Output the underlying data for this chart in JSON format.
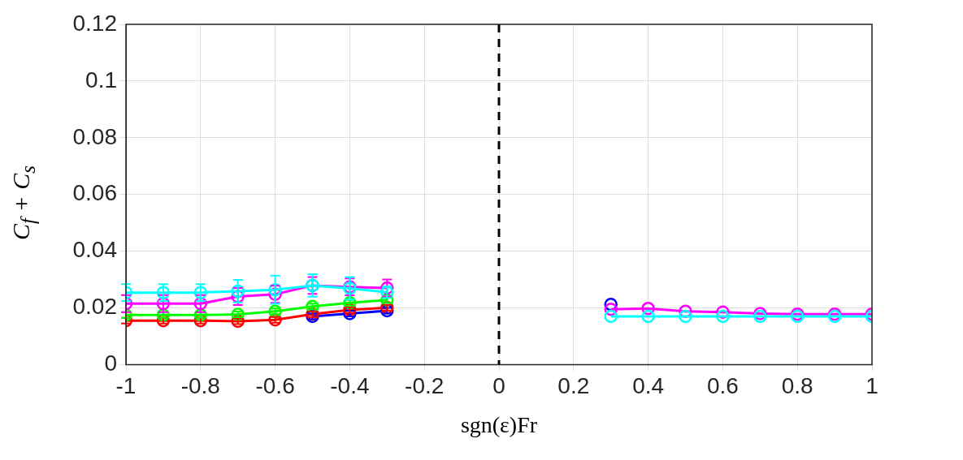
{
  "chart_data": {
    "type": "line",
    "xlabel": "sgn(ε)Fr",
    "ylabel": "C$_{f}$ + C$_{s}$",
    "xlim": [
      -1,
      1
    ],
    "xticks": [
      -1,
      -0.8,
      -0.6,
      -0.4,
      -0.2,
      0,
      0.2,
      0.4,
      0.6,
      0.8,
      1
    ],
    "ylim": [
      0,
      0.12
    ],
    "yticks": [
      0,
      0.02,
      0.04,
      0.06,
      0.08,
      0.1,
      0.12
    ],
    "grid": true,
    "legend": false,
    "marker": "circle",
    "line_style": "solid",
    "ref_lines": [
      {
        "axis": "x",
        "value": 0,
        "color": "#000000",
        "line_style": "dashed"
      }
    ],
    "series": [
      {
        "color": "#0000ff",
        "x": [
          -0.5,
          -0.4,
          -0.3
        ],
        "values": [
          0.017,
          0.018,
          0.019
        ],
        "errors": [
          0.001,
          0.001,
          0.001
        ]
      },
      {
        "color": "#ff0000",
        "x": [
          -1,
          -0.9,
          -0.8,
          -0.7,
          -0.6,
          -0.5,
          -0.4,
          -0.3
        ],
        "values": [
          0.0155,
          0.0155,
          0.0155,
          0.0153,
          0.0158,
          0.0178,
          0.0193,
          0.0201
        ],
        "errors": [
          0.001,
          0.001,
          0.001,
          0.001,
          0.001,
          0.001,
          0.001,
          0.001
        ]
      },
      {
        "color": "#00ff00",
        "x": [
          -1,
          -0.9,
          -0.8,
          -0.7,
          -0.6,
          -0.5,
          -0.4,
          -0.3
        ],
        "values": [
          0.0175,
          0.0175,
          0.0175,
          0.0177,
          0.0188,
          0.0205,
          0.0218,
          0.0228
        ],
        "errors": [
          0.001,
          0.001,
          0.001,
          0.001,
          0.001,
          0.001,
          0.001,
          0.001
        ]
      },
      {
        "color": "#ff00ff",
        "x": [
          -1,
          -0.9,
          -0.8,
          -0.7,
          -0.6,
          -0.5,
          -0.4,
          -0.3
        ],
        "values": [
          0.0215,
          0.0215,
          0.0215,
          0.024,
          0.0248,
          0.0279,
          0.0274,
          0.027
        ],
        "errors": [
          0.003,
          0.003,
          0.003,
          0.003,
          0.003,
          0.003,
          0.003,
          0.003
        ]
      },
      {
        "color": "#00ffff",
        "x": [
          -1,
          -0.9,
          -0.8,
          -0.7,
          -0.6,
          -0.5,
          -0.4,
          -0.3
        ],
        "values": [
          0.0254,
          0.0254,
          0.0254,
          0.0259,
          0.0264,
          0.0279,
          0.0269,
          0.0255
        ],
        "errors": [
          0.003,
          0.003,
          0.003,
          0.004,
          0.005,
          0.004,
          0.004,
          0.002
        ]
      },
      {
        "color": "#0000ff",
        "x": [
          0.3
        ],
        "values": [
          0.0212
        ]
      },
      {
        "color": "#ff00ff",
        "x": [
          0.3,
          0.4,
          0.5,
          0.6,
          0.7,
          0.8,
          0.9,
          1
        ],
        "values": [
          0.0195,
          0.0198,
          0.0188,
          0.0185,
          0.018,
          0.0178,
          0.0178,
          0.0178
        ]
      },
      {
        "color": "#00ffff",
        "x": [
          0.3,
          0.4,
          0.5,
          0.6,
          0.7,
          0.8,
          0.9,
          1
        ],
        "values": [
          0.017,
          0.017,
          0.017,
          0.017,
          0.017,
          0.017,
          0.017,
          0.017
        ]
      }
    ]
  }
}
